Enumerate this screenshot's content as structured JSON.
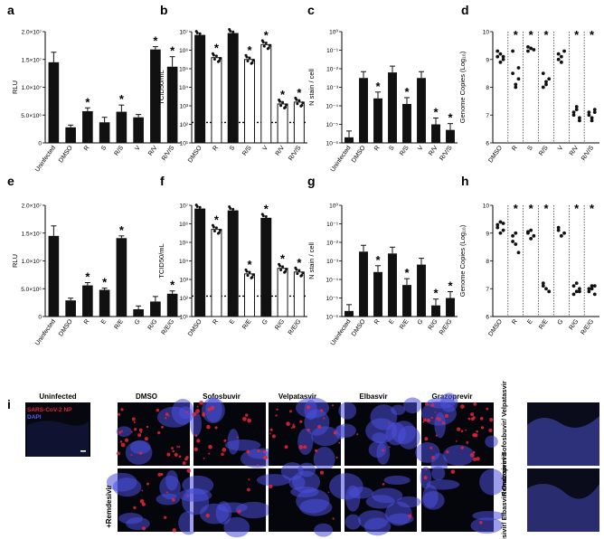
{
  "panels": {
    "a": {
      "label": "a",
      "type": "bar",
      "ylabel": "RLU",
      "yticks": [
        "0",
        "5.0×10⁶",
        "1.0×10⁷",
        "1.5×10⁷",
        "2.0×10⁷"
      ],
      "categories": [
        "Uninfected",
        "DMSO",
        "R",
        "S",
        "R/S",
        "V",
        "R/V",
        "R/V/S"
      ],
      "values": [
        14500000,
        2800000,
        5700000,
        3700000,
        5600000,
        4600000,
        16800000,
        13700000
      ],
      "errors": [
        1800000,
        400000,
        600000,
        900000,
        1200000,
        500000,
        500000,
        1800000
      ],
      "stars": [
        false,
        false,
        true,
        false,
        true,
        false,
        true,
        true
      ],
      "ylim": [
        0,
        20000000
      ]
    },
    "b": {
      "label": "b",
      "type": "scatter",
      "ylabel": "TCID50/mL",
      "yticks": [
        "10¹",
        "10²",
        "10³",
        "10⁴",
        "10⁵",
        "10⁶",
        "10⁷"
      ],
      "categories": [
        "DMSO",
        "R",
        "S",
        "R/S",
        "V",
        "R/V",
        "R/V/S"
      ],
      "log_values": [
        6.8,
        5.6,
        6.9,
        5.5,
        6.3,
        3.1,
        3.2
      ],
      "open_bars": [
        false,
        true,
        false,
        true,
        true,
        true,
        true
      ],
      "stars": [
        false,
        true,
        false,
        true,
        true,
        true,
        true
      ],
      "dotted_line_log": 2.1,
      "ylim_log": [
        1,
        7
      ]
    },
    "c": {
      "label": "c",
      "type": "bar-log",
      "ylabel": "N stain / cell",
      "yticks": [
        "10⁻⁶",
        "10⁻⁵",
        "10⁻⁴",
        "10⁻³",
        "10⁻²",
        "10⁻¹",
        "10⁰"
      ],
      "categories": [
        "Uninfected",
        "DMSO",
        "R",
        "S",
        "R/S",
        "V",
        "R/V",
        "R/V/S"
      ],
      "log_values": [
        -5.7,
        -2.5,
        -3.6,
        -2.2,
        -3.9,
        -2.5,
        -5.0,
        -5.3
      ],
      "stars": [
        false,
        false,
        true,
        false,
        true,
        false,
        true,
        true
      ],
      "ylim_log": [
        -6,
        0
      ]
    },
    "d": {
      "label": "d",
      "type": "dot",
      "ylabel": "Genome Copies (Log₁₀)",
      "yticks": [
        "6",
        "7",
        "8",
        "9",
        "10"
      ],
      "categories": [
        "DMSO",
        "R",
        "S",
        "R/S",
        "V",
        "R/V",
        "R/V/S"
      ],
      "points": [
        [
          9.1,
          9.2,
          9.0,
          9.3,
          8.9,
          9.1
        ],
        [
          8.5,
          8.0,
          8.7,
          9.3,
          8.1,
          8.3
        ],
        [
          9.3,
          9.4,
          9.35,
          9.45
        ],
        [
          8.5,
          8.1,
          8.3,
          8.0,
          8.2
        ],
        [
          9.2,
          8.9,
          9.3,
          9.0,
          9.1
        ],
        [
          7.0,
          7.3,
          6.9,
          7.1,
          7.2,
          6.8
        ],
        [
          7.1,
          6.9,
          7.2,
          7.0,
          6.8,
          7.1
        ]
      ],
      "stars": [
        false,
        true,
        true,
        true,
        false,
        true,
        true
      ],
      "ylim": [
        6,
        10
      ]
    },
    "e": {
      "label": "e",
      "type": "bar",
      "ylabel": "RLU",
      "yticks": [
        "0",
        "5.0×10⁶",
        "1.0×10⁷",
        "1.5×10⁷",
        "2.0×10⁷"
      ],
      "categories": [
        "Uninfected",
        "DMSO",
        "R",
        "E",
        "R/E",
        "G",
        "R/G",
        "R/E/G"
      ],
      "values": [
        14500000,
        2900000,
        5600000,
        4800000,
        14100000,
        1300000,
        2700000,
        4100000
      ],
      "errors": [
        1800000,
        400000,
        500000,
        300000,
        400000,
        600000,
        900000,
        500000
      ],
      "stars": [
        false,
        false,
        true,
        true,
        true,
        false,
        false,
        true
      ],
      "ylim": [
        0,
        20000000
      ]
    },
    "f": {
      "label": "f",
      "type": "scatter",
      "ylabel": "TCID50/mL",
      "yticks": [
        "10¹",
        "10²",
        "10³",
        "10⁴",
        "10⁵",
        "10⁶",
        "10⁷"
      ],
      "categories": [
        "DMSO",
        "R",
        "E",
        "R/E",
        "G",
        "R/G",
        "R/E/G"
      ],
      "log_values": [
        6.8,
        5.7,
        6.7,
        3.3,
        6.3,
        3.6,
        3.4
      ],
      "open_bars": [
        false,
        true,
        false,
        true,
        false,
        true,
        true
      ],
      "stars": [
        false,
        true,
        false,
        true,
        true,
        true,
        true
      ],
      "dotted_line_log": 2.1,
      "ylim_log": [
        1,
        7
      ]
    },
    "g": {
      "label": "g",
      "type": "bar-log",
      "ylabel": "N stain / cell",
      "yticks": [
        "10⁻⁶",
        "10⁻⁵",
        "10⁻⁴",
        "10⁻³",
        "10⁻²",
        "10⁻¹",
        "10⁰"
      ],
      "categories": [
        "Uninfected",
        "DMSO",
        "R",
        "E",
        "R/E",
        "G",
        "R/G",
        "R/E/G"
      ],
      "log_values": [
        -5.7,
        -2.5,
        -3.6,
        -2.6,
        -4.3,
        -3.2,
        -5.4,
        -5.0
      ],
      "stars": [
        false,
        false,
        true,
        false,
        true,
        false,
        true,
        true
      ],
      "ylim_log": [
        -6,
        0
      ]
    },
    "h": {
      "label": "h",
      "type": "dot",
      "ylabel": "Genome Copies (Log₁₀)",
      "yticks": [
        "6",
        "7",
        "8",
        "9",
        "10"
      ],
      "categories": [
        "DMSO",
        "R",
        "E",
        "R/E",
        "G",
        "R/G",
        "R/E/G"
      ],
      "points": [
        [
          9.3,
          9.4,
          9.1,
          9.2,
          9.0,
          9.35
        ],
        [
          8.9,
          8.6,
          8.3,
          8.7,
          9.0
        ],
        [
          9.0,
          9.1,
          8.9,
          9.05,
          8.8
        ],
        [
          7.2,
          7.0,
          6.9,
          7.1
        ],
        [
          9.1,
          8.9,
          9.0,
          9.2
        ],
        [
          7.1,
          6.9,
          7.0,
          6.8,
          7.2,
          6.9
        ],
        [
          7.0,
          7.1,
          6.8,
          6.9,
          7.0,
          7.1
        ]
      ],
      "stars": [
        false,
        true,
        true,
        true,
        false,
        true,
        true
      ],
      "ylim": [
        6,
        10
      ]
    }
  },
  "micro": {
    "panel_label": "i",
    "uninfected_title": "Uninfected",
    "legend_np": "SARS-CoV-2 NP",
    "legend_dapi": "DAPI",
    "column_titles": [
      "DMSO",
      "Sofosbuvir",
      "Velpatasvir",
      "Elbasvir",
      "Grazoprevir"
    ],
    "row_label": "+Remdesivir",
    "combo_labels": [
      "Remdesivir/ Sofosbuvir/ Velpatasvir",
      "Remdesivir/ Elbasvir/ Grazoprevir"
    ],
    "colors": {
      "np": "#e8243c",
      "dapi": "#4a4fd8",
      "background": "#05060c"
    }
  }
}
